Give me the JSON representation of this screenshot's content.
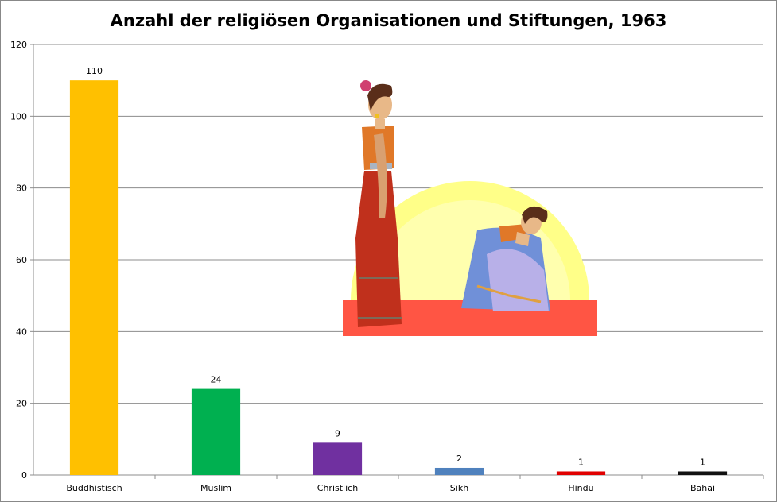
{
  "chart_data": {
    "type": "bar",
    "title": "Anzahl der religiösen Organisationen und Stiftungen, 1963",
    "xlabel": "",
    "ylabel": "",
    "ylim": [
      0,
      120
    ],
    "yticks": [
      0,
      20,
      40,
      60,
      80,
      100,
      120
    ],
    "grid": true,
    "legend": "none",
    "categories": [
      "Buddhistisch",
      "Muslim",
      "Christlich",
      "Sikh",
      "Hindu",
      "Bahai"
    ],
    "values": [
      110,
      24,
      9,
      2,
      1,
      1
    ],
    "data_labels": [
      "110",
      "24",
      "9",
      "2",
      "1",
      "1"
    ],
    "colors": [
      "#FFC000",
      "#00B050",
      "#7030A0",
      "#4F81BD",
      "#E00000",
      "#111111"
    ]
  },
  "illustration": {
    "description_icon": "thai-women-greeting-illustration",
    "colors": {
      "sun": "#FFFF88",
      "floor": "#FF5544",
      "skirt": "#C0301C",
      "top": "#E07828",
      "kneeler_dress": "#7090D8"
    }
  }
}
